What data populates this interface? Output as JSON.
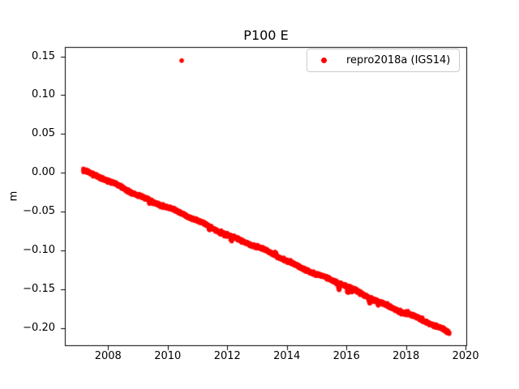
{
  "figure": {
    "title": "P100 E",
    "ylabel": "m",
    "background_color": "#ffffff",
    "text_color": "#000000",
    "spine_color": "#000000"
  },
  "legend": {
    "label": "repro2018a (IGS14)",
    "marker_color": "#ff0000",
    "border_color": "#cccccc",
    "position": "upper right"
  },
  "chart_data": {
    "type": "scatter",
    "title": "P100 E",
    "xlabel": "",
    "ylabel": "m",
    "grid": false,
    "legend_position": "upper right",
    "xlim": [
      2006.55,
      2020.05
    ],
    "ylim": [
      -0.223,
      0.162
    ],
    "x_ticks": [
      {
        "value": 2008,
        "label": "2008"
      },
      {
        "value": 2010,
        "label": "2010"
      },
      {
        "value": 2012,
        "label": "2012"
      },
      {
        "value": 2014,
        "label": "2014"
      },
      {
        "value": 2016,
        "label": "2016"
      },
      {
        "value": 2018,
        "label": "2018"
      },
      {
        "value": 2020,
        "label": "2020"
      }
    ],
    "y_ticks": [
      {
        "value": 0.15,
        "label": "0.15"
      },
      {
        "value": 0.1,
        "label": "0.10"
      },
      {
        "value": 0.05,
        "label": "0.05"
      },
      {
        "value": 0.0,
        "label": "0.00"
      },
      {
        "value": -0.05,
        "label": "−0.05"
      },
      {
        "value": -0.1,
        "label": "−0.10"
      },
      {
        "value": -0.15,
        "label": "−0.15"
      },
      {
        "value": -0.2,
        "label": "−0.20"
      }
    ],
    "series": [
      {
        "name": "repro2018a (IGS14)",
        "color": "#ff0000",
        "marker": "point",
        "marker_radius_px": 2.6,
        "x_start": 2007.17,
        "y_start": 0.003,
        "x_end": 2019.45,
        "y_end": -0.2055,
        "slope_m_per_yr": -0.017,
        "n_points": 4200,
        "noise_sigma_m": 0.0009,
        "seasonal_amplitude_m": 0.0008,
        "wander_amplitude_m": 0.0009,
        "wander_period_yr": 2.7,
        "random_seed": 20190615,
        "dips": [
          {
            "x": 2009.4,
            "depth": 0.004,
            "width": 0.02
          },
          {
            "x": 2011.4,
            "depth": 0.004,
            "width": 0.02
          },
          {
            "x": 2012.14,
            "depth": 0.006,
            "width": 0.03
          },
          {
            "x": 2013.62,
            "depth": -0.004,
            "width": 0.03
          },
          {
            "x": 2015.75,
            "depth": 0.006,
            "width": 0.025
          },
          {
            "x": 2016.05,
            "depth": 0.007,
            "width": 0.03
          },
          {
            "x": 2016.18,
            "depth": 0.005,
            "width": 0.02
          },
          {
            "x": 2016.78,
            "depth": 0.006,
            "width": 0.025
          },
          {
            "x": 2017.05,
            "depth": 0.004,
            "width": 0.02
          }
        ],
        "outliers": [
          {
            "x": 2010.47,
            "y": 0.1445
          }
        ]
      }
    ]
  }
}
